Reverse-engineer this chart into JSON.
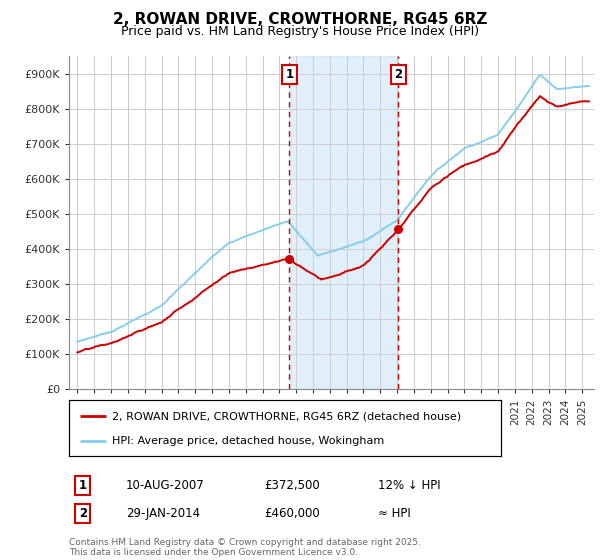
{
  "title_line1": "2, ROWAN DRIVE, CROWTHORNE, RG45 6RZ",
  "title_line2": "Price paid vs. HM Land Registry's House Price Index (HPI)",
  "bg_color": "#ffffff",
  "plot_bg_color": "#ffffff",
  "grid_color": "#cccccc",
  "line1_color": "#cc0000",
  "line2_color": "#87CEEB",
  "shade_color": "#cce5f5",
  "vline_color": "#cc0000",
  "sale1_x": 2007.6,
  "sale1_label": "1",
  "sale1_date": "10-AUG-2007",
  "sale1_price": "£372,500",
  "sale1_hpi": "12% ↓ HPI",
  "sale2_x": 2014.08,
  "sale2_label": "2",
  "sale2_date": "29-JAN-2014",
  "sale2_price": "£460,000",
  "sale2_hpi": "≈ HPI",
  "legend1": "2, ROWAN DRIVE, CROWTHORNE, RG45 6RZ (detached house)",
  "legend2": "HPI: Average price, detached house, Wokingham",
  "footer": "Contains HM Land Registry data © Crown copyright and database right 2025.\nThis data is licensed under the Open Government Licence v3.0.",
  "xmin": 1994.5,
  "xmax": 2025.7,
  "ymin": 0,
  "ymax": 950000,
  "yticks": [
    0,
    100000,
    200000,
    300000,
    400000,
    500000,
    600000,
    700000,
    800000,
    900000
  ],
  "ylabels": [
    "£0",
    "£100K",
    "£200K",
    "£300K",
    "£400K",
    "£500K",
    "£600K",
    "£700K",
    "£800K",
    "£900K"
  ]
}
